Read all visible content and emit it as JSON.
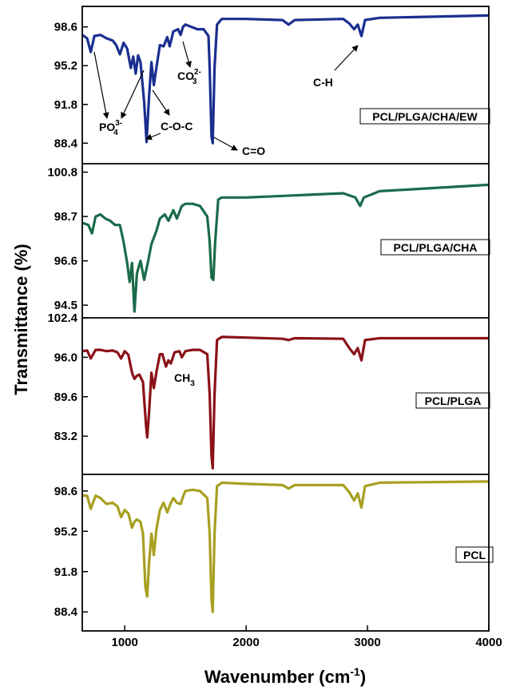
{
  "chart_data": {
    "type": "line",
    "title": "",
    "xlabel": "Wavenumber (cm",
    "xlabel_sup": "-1",
    "xlabel_end": ")",
    "ylabel": "Transmittance (%)",
    "xlim": [
      650,
      4000
    ],
    "xticks": [
      1000,
      2000,
      3000,
      4000
    ],
    "grid": false,
    "panels": [
      {
        "name": "PCL/PLGA/CHA/EW",
        "color": "#1a2f8f",
        "ylim": [
          86.6,
          100.4
        ],
        "yticks": [
          98.6,
          95.2,
          91.8,
          88.4
        ],
        "points": [
          [
            650,
            97.9
          ],
          [
            690,
            97.6
          ],
          [
            720,
            96.4
          ],
          [
            750,
            97.8
          ],
          [
            800,
            97.9
          ],
          [
            850,
            97.6
          ],
          [
            900,
            97.4
          ],
          [
            930,
            97.0
          ],
          [
            960,
            96.2
          ],
          [
            990,
            97.2
          ],
          [
            1020,
            96.7
          ],
          [
            1050,
            95.0
          ],
          [
            1070,
            96.0
          ],
          [
            1090,
            94.5
          ],
          [
            1110,
            96.1
          ],
          [
            1130,
            95.5
          ],
          [
            1160,
            92.0
          ],
          [
            1180,
            88.5
          ],
          [
            1200,
            92.5
          ],
          [
            1220,
            95.5
          ],
          [
            1240,
            93.5
          ],
          [
            1260,
            95.0
          ],
          [
            1290,
            97.0
          ],
          [
            1320,
            96.9
          ],
          [
            1350,
            97.7
          ],
          [
            1370,
            96.9
          ],
          [
            1400,
            98.2
          ],
          [
            1440,
            98.4
          ],
          [
            1460,
            97.9
          ],
          [
            1480,
            98.6
          ],
          [
            1500,
            98.8
          ],
          [
            1550,
            98.6
          ],
          [
            1600,
            98.4
          ],
          [
            1650,
            98.4
          ],
          [
            1690,
            97.8
          ],
          [
            1700,
            95.0
          ],
          [
            1715,
            89.0
          ],
          [
            1725,
            88.4
          ],
          [
            1740,
            95.0
          ],
          [
            1760,
            98.8
          ],
          [
            1800,
            99.3
          ],
          [
            2000,
            99.3
          ],
          [
            2300,
            99.2
          ],
          [
            2350,
            98.8
          ],
          [
            2400,
            99.2
          ],
          [
            2800,
            99.3
          ],
          [
            2850,
            98.9
          ],
          [
            2890,
            98.4
          ],
          [
            2920,
            98.8
          ],
          [
            2950,
            97.8
          ],
          [
            2980,
            99.2
          ],
          [
            3100,
            99.4
          ],
          [
            4000,
            99.6
          ]
        ]
      },
      {
        "name": "PCL/PLGA/CHA",
        "color": "#1a6b4a",
        "ylim": [
          93.9,
          101.2
        ],
        "yticks": [
          100.8,
          98.7,
          96.6,
          94.5
        ],
        "points": [
          [
            650,
            98.4
          ],
          [
            700,
            98.3
          ],
          [
            730,
            97.9
          ],
          [
            760,
            98.7
          ],
          [
            800,
            98.8
          ],
          [
            840,
            98.6
          ],
          [
            880,
            98.5
          ],
          [
            920,
            98.3
          ],
          [
            960,
            98.3
          ],
          [
            990,
            97.5
          ],
          [
            1020,
            96.5
          ],
          [
            1040,
            95.6
          ],
          [
            1060,
            96.5
          ],
          [
            1080,
            94.2
          ],
          [
            1100,
            96.0
          ],
          [
            1130,
            96.6
          ],
          [
            1160,
            95.7
          ],
          [
            1190,
            96.5
          ],
          [
            1220,
            97.4
          ],
          [
            1260,
            98.0
          ],
          [
            1290,
            98.6
          ],
          [
            1330,
            98.8
          ],
          [
            1360,
            98.5
          ],
          [
            1400,
            99.0
          ],
          [
            1430,
            98.6
          ],
          [
            1470,
            99.2
          ],
          [
            1500,
            99.3
          ],
          [
            1560,
            99.3
          ],
          [
            1620,
            99.2
          ],
          [
            1680,
            98.7
          ],
          [
            1700,
            97.5
          ],
          [
            1715,
            95.8
          ],
          [
            1730,
            95.7
          ],
          [
            1745,
            97.5
          ],
          [
            1770,
            99.5
          ],
          [
            1800,
            99.6
          ],
          [
            2000,
            99.6
          ],
          [
            2400,
            99.7
          ],
          [
            2800,
            99.8
          ],
          [
            2900,
            99.6
          ],
          [
            2940,
            99.2
          ],
          [
            2970,
            99.6
          ],
          [
            3100,
            99.9
          ],
          [
            4000,
            100.2
          ]
        ]
      },
      {
        "name": "PCL/PLGA",
        "color": "#8b1218",
        "ylim": [
          77.0,
          102.4
        ],
        "yticks": [
          102.4,
          96.0,
          89.6,
          83.2
        ],
        "points": [
          [
            650,
            97.0
          ],
          [
            690,
            97.1
          ],
          [
            720,
            95.8
          ],
          [
            760,
            97.2
          ],
          [
            800,
            97.2
          ],
          [
            850,
            97.0
          ],
          [
            900,
            97.1
          ],
          [
            940,
            96.8
          ],
          [
            970,
            95.8
          ],
          [
            1000,
            97.0
          ],
          [
            1030,
            96.4
          ],
          [
            1060,
            93.5
          ],
          [
            1080,
            92.5
          ],
          [
            1100,
            93.0
          ],
          [
            1120,
            93.2
          ],
          [
            1150,
            92.0
          ],
          [
            1175,
            85.0
          ],
          [
            1185,
            83.0
          ],
          [
            1200,
            87.0
          ],
          [
            1220,
            93.5
          ],
          [
            1240,
            91.0
          ],
          [
            1260,
            93.5
          ],
          [
            1290,
            96.5
          ],
          [
            1310,
            96.5
          ],
          [
            1340,
            94.5
          ],
          [
            1360,
            95.5
          ],
          [
            1380,
            95.0
          ],
          [
            1410,
            96.8
          ],
          [
            1450,
            97.0
          ],
          [
            1470,
            96.0
          ],
          [
            1500,
            97.0
          ],
          [
            1560,
            97.2
          ],
          [
            1620,
            97.2
          ],
          [
            1680,
            96.5
          ],
          [
            1700,
            90.0
          ],
          [
            1715,
            80.0
          ],
          [
            1725,
            78.0
          ],
          [
            1740,
            90.0
          ],
          [
            1760,
            98.8
          ],
          [
            1800,
            99.3
          ],
          [
            2000,
            99.2
          ],
          [
            2300,
            99.0
          ],
          [
            2350,
            98.8
          ],
          [
            2400,
            99.1
          ],
          [
            2800,
            99.0
          ],
          [
            2850,
            97.5
          ],
          [
            2890,
            96.5
          ],
          [
            2920,
            97.5
          ],
          [
            2950,
            95.5
          ],
          [
            2980,
            98.8
          ],
          [
            3100,
            99.1
          ],
          [
            4000,
            99.1
          ]
        ]
      },
      {
        "name": "PCL",
        "color": "#a8a020",
        "ylim": [
          86.8,
          100.0
        ],
        "yticks": [
          98.6,
          95.2,
          91.8,
          88.4
        ],
        "points": [
          [
            650,
            98.2
          ],
          [
            690,
            98.2
          ],
          [
            720,
            97.1
          ],
          [
            760,
            98.2
          ],
          [
            800,
            98.0
          ],
          [
            850,
            97.5
          ],
          [
            900,
            97.6
          ],
          [
            940,
            97.3
          ],
          [
            970,
            96.4
          ],
          [
            1000,
            97.0
          ],
          [
            1030,
            96.7
          ],
          [
            1060,
            95.5
          ],
          [
            1080,
            96.0
          ],
          [
            1100,
            96.2
          ],
          [
            1130,
            96.0
          ],
          [
            1150,
            95.0
          ],
          [
            1170,
            90.5
          ],
          [
            1185,
            89.7
          ],
          [
            1200,
            92.5
          ],
          [
            1220,
            95.0
          ],
          [
            1240,
            93.2
          ],
          [
            1260,
            95.3
          ],
          [
            1290,
            97.0
          ],
          [
            1320,
            97.6
          ],
          [
            1350,
            96.8
          ],
          [
            1380,
            97.6
          ],
          [
            1400,
            98.0
          ],
          [
            1430,
            97.6
          ],
          [
            1460,
            97.5
          ],
          [
            1480,
            98.1
          ],
          [
            1500,
            98.6
          ],
          [
            1560,
            98.7
          ],
          [
            1620,
            98.6
          ],
          [
            1680,
            98.0
          ],
          [
            1700,
            95.0
          ],
          [
            1715,
            89.5
          ],
          [
            1725,
            88.4
          ],
          [
            1740,
            95.0
          ],
          [
            1760,
            99.0
          ],
          [
            1800,
            99.3
          ],
          [
            2000,
            99.2
          ],
          [
            2300,
            99.1
          ],
          [
            2350,
            98.8
          ],
          [
            2400,
            99.1
          ],
          [
            2800,
            99.1
          ],
          [
            2850,
            98.5
          ],
          [
            2890,
            97.8
          ],
          [
            2920,
            98.4
          ],
          [
            2950,
            97.2
          ],
          [
            2980,
            99.0
          ],
          [
            3100,
            99.3
          ],
          [
            4000,
            99.4
          ]
        ]
      }
    ],
    "annotations": [
      {
        "id": "po4",
        "text": "PO",
        "sub": "4",
        "sup": "3-"
      },
      {
        "id": "coc",
        "text": "C-O-C"
      },
      {
        "id": "co3",
        "text": "CO",
        "sub": "3",
        "sup": "2-"
      },
      {
        "id": "ch",
        "text": "C-H"
      },
      {
        "id": "co",
        "text": "C=O"
      },
      {
        "id": "ch3",
        "text": "CH",
        "sub": "3"
      }
    ]
  }
}
